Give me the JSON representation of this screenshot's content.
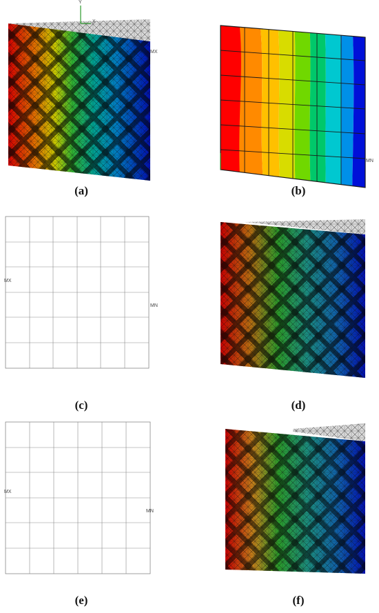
{
  "panels": [
    {
      "id": "a",
      "caption": "(a)",
      "type": "solid-lattice"
    },
    {
      "id": "b",
      "caption": "(b)",
      "type": "continuum"
    },
    {
      "id": "c",
      "caption": "(c)",
      "type": "wire-frame"
    },
    {
      "id": "d",
      "caption": "(d)",
      "type": "solid-lattice"
    },
    {
      "id": "e",
      "caption": "(e)",
      "type": "wire-frame"
    },
    {
      "id": "f",
      "caption": "(f)",
      "type": "solid-lattice"
    }
  ],
  "labels": {
    "axis_y": "Y",
    "axis_x": "X",
    "mx": "MX",
    "mn": "MN"
  },
  "colors": {
    "contour_bands": [
      "#e60000",
      "#ff6a00",
      "#ffb000",
      "#e0d800",
      "#7ad400",
      "#00c040",
      "#00d0b0",
      "#00a8e0",
      "#0060e0",
      "#0000c8"
    ],
    "undeformed": "#bdbdbd",
    "mesh": "#1a1a1a"
  }
}
